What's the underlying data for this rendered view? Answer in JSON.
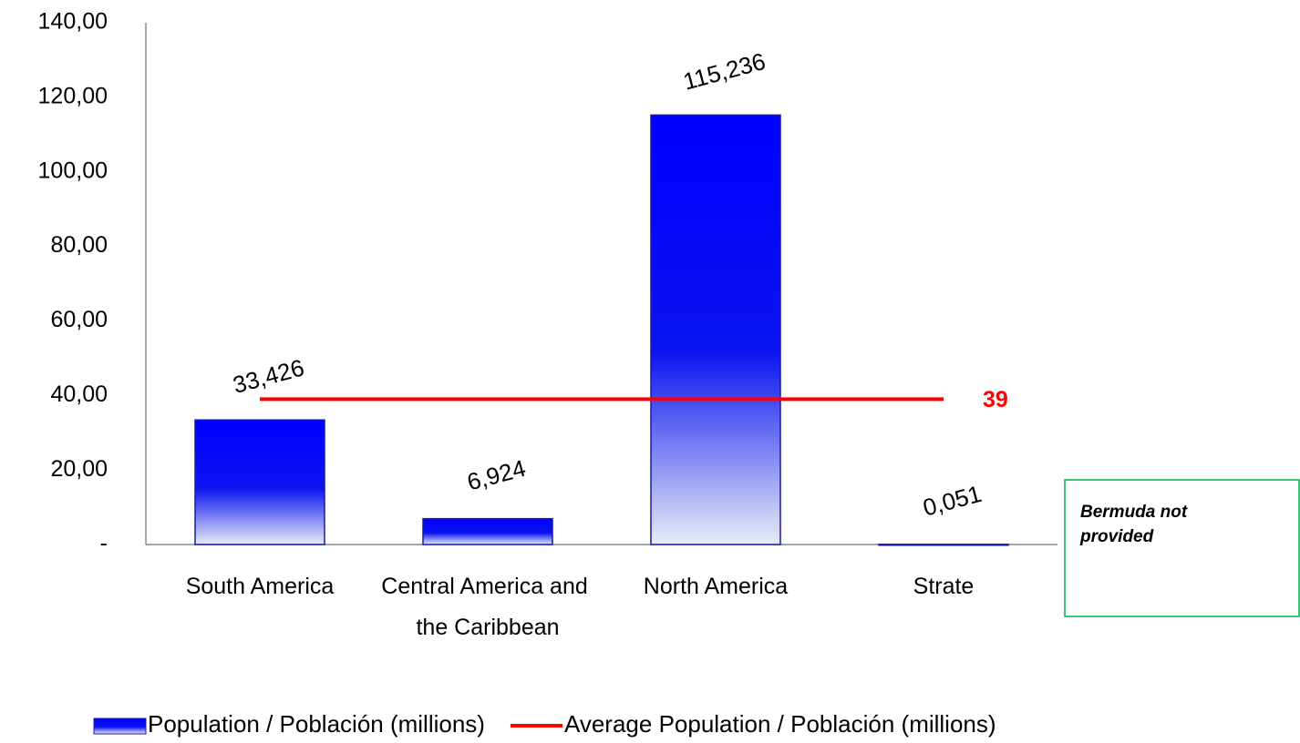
{
  "chart_data": {
    "type": "bar",
    "categories": [
      "South America",
      "Central America and the Caribbean",
      "North America",
      "Strate"
    ],
    "series": [
      {
        "name": "Population / Población (millions)",
        "color": "#0000ff",
        "values": [
          33.426,
          6.924,
          115.236,
          0.051
        ],
        "value_labels": [
          "33,426",
          "6,924",
          "115,236",
          "0,051"
        ]
      },
      {
        "name": "Average Population / Población (millions)",
        "type": "line",
        "color": "#ff0000",
        "values": [
          39,
          39,
          39,
          39
        ]
      }
    ],
    "ylim": [
      0,
      140
    ],
    "yticks": [
      {
        "value": 0,
        "label": "-"
      },
      {
        "value": 20,
        "label": "20,00"
      },
      {
        "value": 40,
        "label": "40,00"
      },
      {
        "value": 60,
        "label": "60,00"
      },
      {
        "value": 80,
        "label": "80,00"
      },
      {
        "value": 100,
        "label": "100,00"
      },
      {
        "value": 120,
        "label": "120,00"
      },
      {
        "value": 140,
        "label": "140,00"
      }
    ],
    "annotation": "Bermuda not provided",
    "legend": "bottom"
  }
}
